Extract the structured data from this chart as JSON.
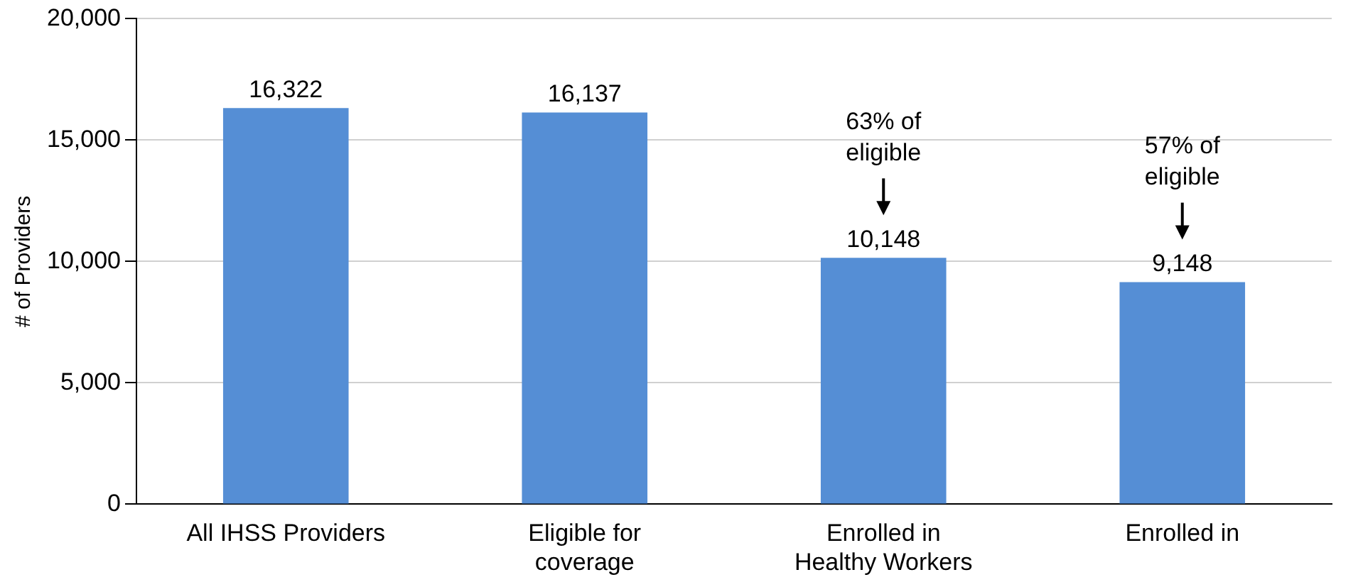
{
  "chart_data": {
    "type": "bar",
    "ylabel": "# of Providers",
    "categories": [
      "All IHSS Providers",
      "Eligible for coverage",
      "Enrolled in Healthy Workers",
      "Enrolled in"
    ],
    "values": [
      16322,
      16137,
      10148,
      9148
    ],
    "color": "#558ed5",
    "value_labels": [
      "16,322",
      "16,137",
      "10,148",
      "9,148"
    ],
    "ylim": [
      0,
      20000
    ],
    "yticks": [
      0,
      {
        "value": 5000,
        "label": "5,000"
      },
      {
        "value": 10000,
        "label": "10,000"
      },
      {
        "value": 15000,
        "label": "15,000"
      },
      {
        "value": 20000,
        "label": "20,000"
      }
    ],
    "grid": "y",
    "annotations": [
      "63% of eligible",
      "57% of eligible"
    ]
  }
}
